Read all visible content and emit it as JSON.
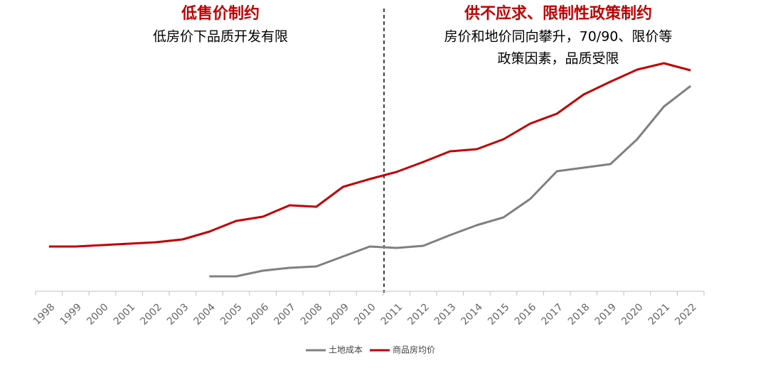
{
  "chart_data": {
    "type": "line",
    "annotations": [
      "低售价制约",
      "低房价下品质开发有限",
      "供不应求、限制性政策制约",
      "房价和地价同向攀升，70/90、限价等",
      "政策因素，品质受限"
    ],
    "categories": [
      "1998",
      "1999",
      "2000",
      "2001",
      "2002",
      "2003",
      "2004",
      "2005",
      "2006",
      "2007",
      "2008",
      "2009",
      "2010",
      "2011",
      "2012",
      "2013",
      "2014",
      "2015",
      "2016",
      "2017",
      "2018",
      "2019",
      "2020",
      "2021",
      "2022"
    ],
    "series": [
      {
        "name": "土地成本",
        "color": "#808080",
        "values": [
          null,
          null,
          null,
          null,
          null,
          null,
          21,
          21,
          29,
          33,
          35,
          49,
          63,
          61,
          64,
          79,
          93,
          104,
          130,
          169,
          174,
          179,
          214,
          260,
          289
        ]
      },
      {
        "name": "商品房均价",
        "color": "#c00000",
        "values": [
          63,
          63,
          65,
          67,
          69,
          73,
          84,
          99,
          105,
          121,
          119,
          147,
          158,
          168,
          182,
          197,
          200,
          214,
          236,
          250,
          277,
          295,
          312,
          321,
          311
        ]
      }
    ],
    "ylim": [
      0,
      360
    ]
  }
}
